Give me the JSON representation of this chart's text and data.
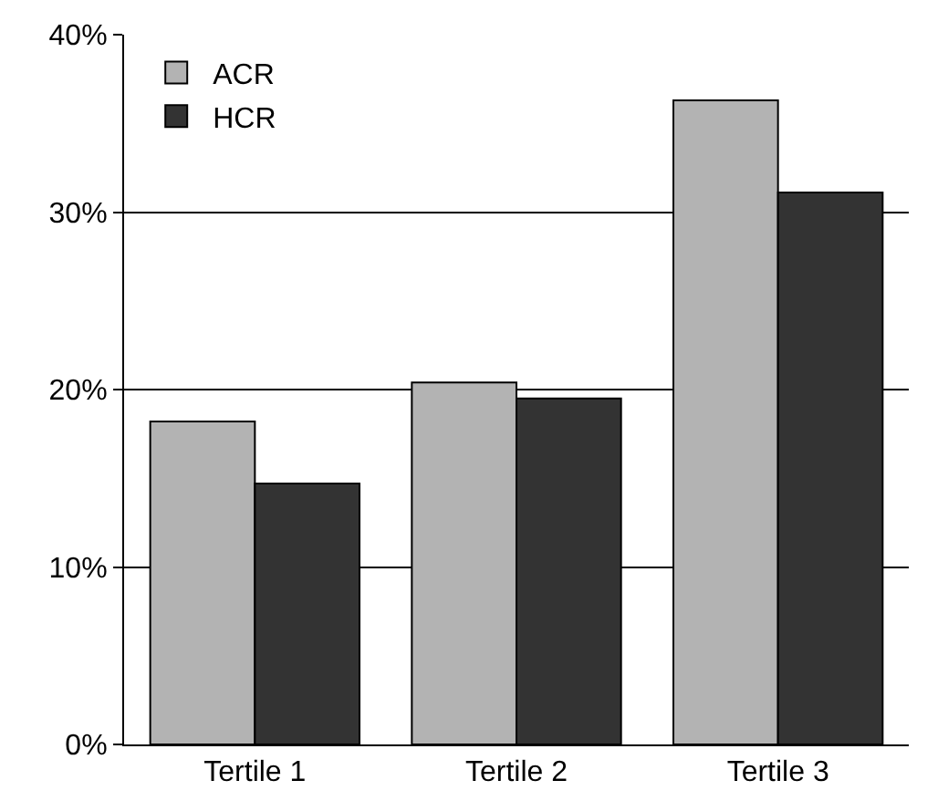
{
  "chart_data": {
    "type": "bar",
    "categories": [
      "Tertile 1",
      "Tertile 2",
      "Tertile 3"
    ],
    "series": [
      {
        "name": "ACR",
        "color": "#b3b3b3",
        "values": [
          18.2,
          20.4,
          36.3
        ]
      },
      {
        "name": "HCR",
        "color": "#333333",
        "values": [
          14.7,
          19.5,
          31.1
        ]
      }
    ],
    "ylim": [
      0,
      40
    ],
    "yticks": [
      {
        "value": 0,
        "label": "0%"
      },
      {
        "value": 10,
        "label": "10%"
      },
      {
        "value": 20,
        "label": "20%"
      },
      {
        "value": 30,
        "label": "30%"
      },
      {
        "value": 40,
        "label": "40%"
      }
    ],
    "grid": "y",
    "legend": "top left"
  }
}
